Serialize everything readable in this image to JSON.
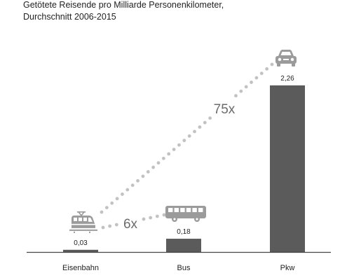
{
  "chart_data": {
    "type": "bar",
    "title_lines": [
      "Getötete Reisende pro Milliarde Personenkilometer,",
      "Durchschnitt 2006-2015"
    ],
    "categories": [
      "Eisenbahn",
      "Bus",
      "Pkw"
    ],
    "values": [
      0.03,
      0.18,
      2.26
    ],
    "value_labels": [
      "0,03",
      "0,18",
      "2,26"
    ],
    "icons": [
      "train-icon",
      "bus-icon",
      "car-icon"
    ],
    "annotations": [
      {
        "text": "6x",
        "from": "Eisenbahn",
        "to": "Bus"
      },
      {
        "text": "75x",
        "from": "Eisenbahn",
        "to": "Pkw"
      }
    ],
    "ylim": [
      0,
      2.26
    ],
    "grid": false,
    "legend": "none"
  },
  "colors": {
    "bar": "#5b5b5b",
    "icon": "#9b9b9b",
    "dots": "#c2c2c2",
    "axis": "#444444",
    "ratio_text": "#6b6b6b"
  }
}
